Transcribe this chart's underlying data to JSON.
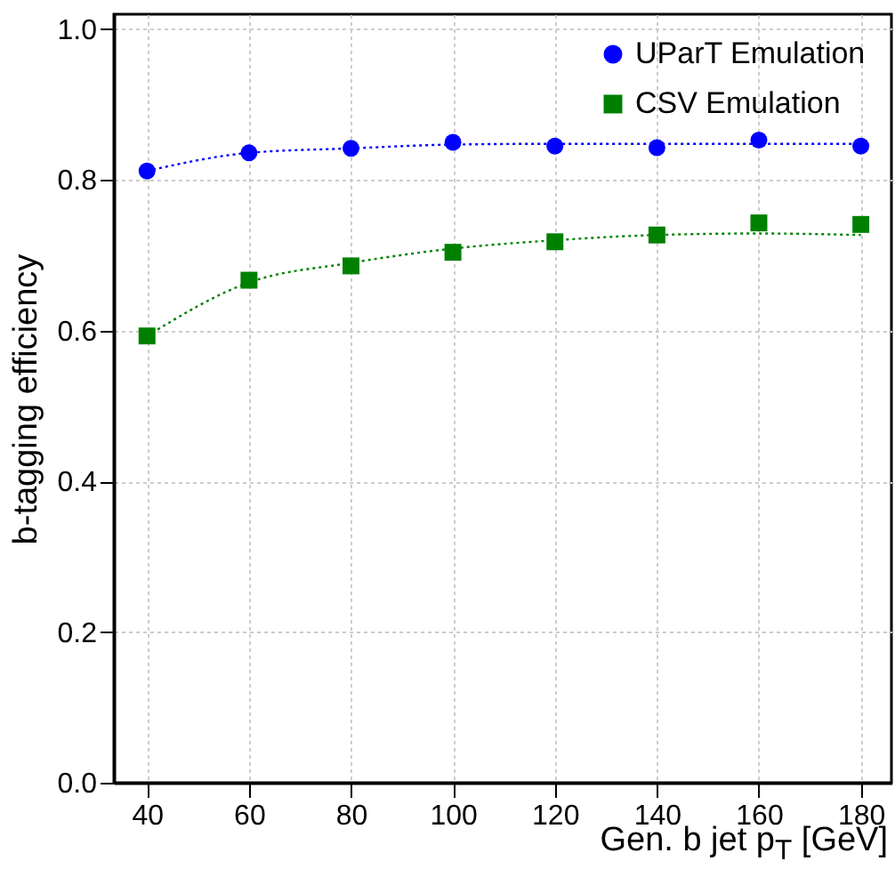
{
  "chart_data": {
    "type": "scatter",
    "xlabel": "Gen. b jet p$_{T}$ [GeV]",
    "ylabel": "b-tagging efficiency",
    "x": [
      40,
      60,
      80,
      100,
      120,
      140,
      160,
      180
    ],
    "series": [
      {
        "name": "UParT Emulation",
        "color": "#0000ff",
        "marker": "circle",
        "values": [
          0.812,
          0.836,
          0.842,
          0.85,
          0.845,
          0.843,
          0.853,
          0.845
        ]
      },
      {
        "name": "CSV Emulation",
        "color": "#008000",
        "marker": "square",
        "values": [
          0.593,
          0.667,
          0.686,
          0.704,
          0.718,
          0.727,
          0.743,
          0.741
        ]
      },
      {
        "type": "line",
        "color": "#0000ff",
        "line_style": "dotted",
        "values": [
          0.812,
          0.836,
          0.842,
          0.847,
          0.848,
          0.848,
          0.848,
          0.848
        ]
      },
      {
        "type": "line",
        "color": "#008000",
        "line_style": "dotted",
        "values": [
          0.593,
          0.664,
          0.69,
          0.709,
          0.72,
          0.727,
          0.729,
          0.727
        ]
      }
    ],
    "xlim": [
      33.5,
      186
    ],
    "xticks": [
      40,
      60,
      80,
      100,
      120,
      140,
      160,
      180
    ],
    "ylim": [
      0,
      1.02
    ],
    "yticks": [
      {
        "value": 0,
        "label": "0.0"
      },
      {
        "value": 0.2,
        "label": "0.2"
      },
      {
        "value": 0.4,
        "label": "0.4"
      },
      {
        "value": 0.6,
        "label": "0.6"
      },
      {
        "value": 0.8,
        "label": "0.8"
      },
      {
        "value": 1.0,
        "label": "1.0"
      }
    ],
    "grid": true,
    "legend": "top right"
  }
}
